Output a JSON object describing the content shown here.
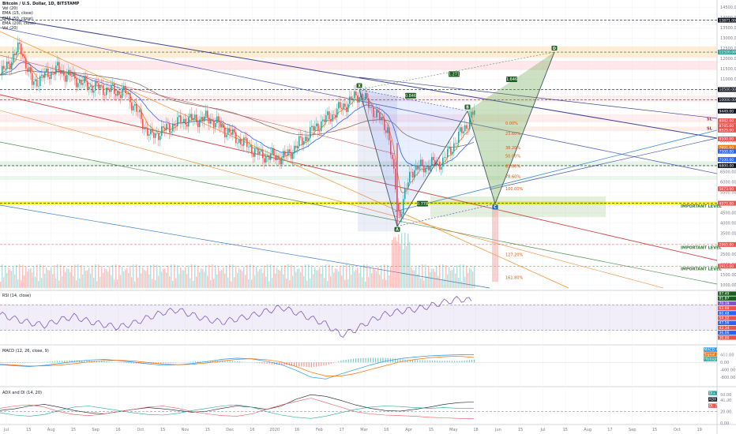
{
  "header": {
    "symbol": "Bitcoin / U.S. Dollar, 1D, BITSTAMP",
    "indicators": [
      "Vol (20)",
      "EMA (15, close)",
      "EMA (50, close)",
      "EMA (200, close)",
      "Vol (20)"
    ]
  },
  "colors": {
    "up": "#26a69a",
    "down": "#ef5350",
    "accent": "#2962ff",
    "yellow": "#f7f21a",
    "harmonic_fill": "#6aa84f",
    "rsi": "#7e57c2"
  },
  "chart_data": [
    {
      "type": "candlestick",
      "title": "Bitcoin / U.S. Dollar, 1D, BITSTAMP",
      "x_tick_labels": [
        "Jul",
        "15",
        "Aug",
        "15",
        "Sep",
        "16",
        "Oct",
        "15",
        "Nov",
        "15",
        "Dec",
        "16",
        "2020",
        "16",
        "Feb",
        "17",
        "Mar",
        "16",
        "Apr",
        "15",
        "May",
        "18",
        "Jun",
        "15",
        "Jul",
        "15",
        "Aug",
        "17",
        "Sep",
        "15",
        "Oct",
        "19"
      ],
      "y_tick_labels": [
        "14500.00",
        "14000.00",
        "13500.00",
        "13000.00",
        "12500.00",
        "12000.00",
        "11500.00",
        "11000.00",
        "10500.00",
        "10000.00",
        "9500.00",
        "9000.00",
        "8500.00",
        "8000.00",
        "7500.00",
        "7000.00",
        "6500.00",
        "6000.00",
        "5500.00",
        "5000.00",
        "4500.00",
        "4000.00",
        "3500.00",
        "3000.00",
        "2500.00",
        "2000.00",
        "1500.00",
        "1000.00"
      ],
      "ylim": [
        850,
        14700
      ],
      "price_labels": [
        {
          "text": "13871.00",
          "value": 13871,
          "color": "#131722"
        },
        {
          "text": "12320.00",
          "value": 12320,
          "color": "#26a69a"
        },
        {
          "text": "10500.00",
          "value": 10500,
          "color": "#131722"
        },
        {
          "text": "10000.00",
          "value": 10000,
          "color": "#131722"
        },
        {
          "text": "9449.00",
          "value": 9449,
          "color": "#131722"
        },
        {
          "text": "8982.00",
          "value": 8982,
          "color": "#ef5350"
        },
        {
          "text": "8745.00",
          "value": 8745,
          "color": "#ef5350"
        },
        {
          "text": "8525.00",
          "value": 8525,
          "color": "#ef5350"
        },
        {
          "text": "8100.00",
          "value": 8100,
          "color": "#ef5350"
        },
        {
          "text": "7691.00",
          "value": 7691,
          "color": "#f57c00"
        },
        {
          "text": "7500.00",
          "value": 7500,
          "color": "#2962ff"
        },
        {
          "text": "7100.00",
          "value": 7100,
          "color": "#2962ff"
        },
        {
          "text": "6800.00",
          "value": 6800,
          "color": "#131722"
        },
        {
          "text": "5673.00",
          "value": 5673,
          "color": "#ef5350"
        },
        {
          "text": "4970.00",
          "value": 4970,
          "color": "#ef5350"
        },
        {
          "text": "2965.00",
          "value": 2965,
          "color": "#ef5350"
        },
        {
          "text": "1915.00",
          "value": 1915,
          "color": "#ef5350"
        }
      ],
      "harmonic_points": [
        {
          "label": "X",
          "value": 10500
        },
        {
          "label": "A",
          "value": 3850
        },
        {
          "label": "B",
          "value": 9460
        },
        {
          "label": "C",
          "value": 4940
        },
        {
          "label": "D",
          "value": 12320
        }
      ],
      "ratios": [
        "0.846",
        "0.778",
        "1.271",
        "1.646"
      ],
      "important_levels": [
        {
          "text": "IMPORTANT LEVEL",
          "value": 4970
        },
        {
          "text": "IMPORTANT LEVEL",
          "value": 2965
        },
        {
          "text": "IMPORTANT LEVEL",
          "value": 1915
        }
      ],
      "sl_labels": [
        "SL",
        "SL"
      ],
      "fib_labels": [
        "0.00%",
        "23.60%",
        "38.20%",
        "50.00%",
        "61.80%",
        "78.60%",
        "100.00%",
        "127.20%",
        "161.80%"
      ]
    },
    {
      "type": "line",
      "title": "RSI (14, close)",
      "ylim": [
        10,
        90
      ],
      "y_tick_labels": [
        "87.49",
        "81.87",
        "70.19",
        "63.98",
        "60.48",
        "54.32",
        "47.56",
        "42.34",
        "36.06",
        "30.00"
      ],
      "bands": [
        70,
        30
      ],
      "series": [
        {
          "name": "RSI",
          "values": [
            55,
            48,
            42,
            38,
            46,
            52,
            44,
            39,
            35,
            41,
            50,
            58,
            62,
            54,
            47,
            43,
            48,
            53,
            60,
            66,
            58,
            49,
            40,
            23,
            31,
            45,
            55,
            60,
            63,
            68,
            74,
            79,
            76
          ]
        }
      ]
    },
    {
      "type": "bar",
      "title": "MACD (12, 26, close, 9)",
      "ylim": [
        -1200,
        800
      ],
      "y_tick_labels": [
        "400.00",
        "0.00",
        "-400.00",
        "-800.00"
      ],
      "value_labels": [
        "MACD 408.50",
        "Signal 257.89",
        "Histogram 150.61"
      ],
      "series": [
        {
          "name": "MACD",
          "values": [
            -120,
            -180,
            -220,
            -160,
            -60,
            40,
            120,
            160,
            90,
            10,
            -80,
            -150,
            -130,
            -60,
            40,
            160,
            220,
            180,
            60,
            -120,
            -420,
            -780,
            -880,
            -620,
            -380,
            -140,
            60,
            190,
            280,
            340,
            380,
            400,
            408
          ]
        },
        {
          "name": "Signal",
          "values": [
            -100,
            -140,
            -190,
            -185,
            -140,
            -70,
            20,
            90,
            110,
            70,
            -10,
            -90,
            -120,
            -100,
            -30,
            70,
            160,
            190,
            140,
            20,
            -220,
            -520,
            -720,
            -720,
            -590,
            -380,
            -180,
            20,
            150,
            240,
            300,
            330,
            258
          ]
        }
      ]
    },
    {
      "type": "line",
      "title": "ADX and DI (14, 20)",
      "ylim": [
        0,
        60
      ],
      "y_tick_labels": [
        "50.00",
        "40.00",
        "20.00",
        "0.00"
      ],
      "value_labels": [
        "DI+ 26.40",
        "ADX 36.99",
        "DI- 7.72"
      ],
      "series": [
        {
          "name": "ADX",
          "values": [
            22,
            25,
            30,
            33,
            28,
            22,
            18,
            16,
            20,
            24,
            27,
            25,
            22,
            19,
            21,
            26,
            30,
            28,
            24,
            30,
            42,
            50,
            47,
            40,
            32,
            26,
            22,
            21,
            24,
            28,
            33,
            36,
            37
          ]
        },
        {
          "name": "DI+",
          "values": [
            18,
            14,
            12,
            15,
            22,
            28,
            30,
            26,
            22,
            18,
            15,
            14,
            17,
            22,
            26,
            30,
            32,
            28,
            20,
            14,
            10,
            8,
            12,
            18,
            24,
            28,
            30,
            29,
            27,
            26,
            27,
            26,
            26
          ]
        },
        {
          "name": "DI-",
          "values": [
            26,
            30,
            32,
            28,
            20,
            15,
            13,
            16,
            20,
            24,
            28,
            30,
            26,
            20,
            16,
            13,
            12,
            16,
            24,
            32,
            38,
            44,
            36,
            28,
            20,
            16,
            14,
            13,
            12,
            10,
            9,
            8,
            8
          ]
        }
      ]
    }
  ]
}
